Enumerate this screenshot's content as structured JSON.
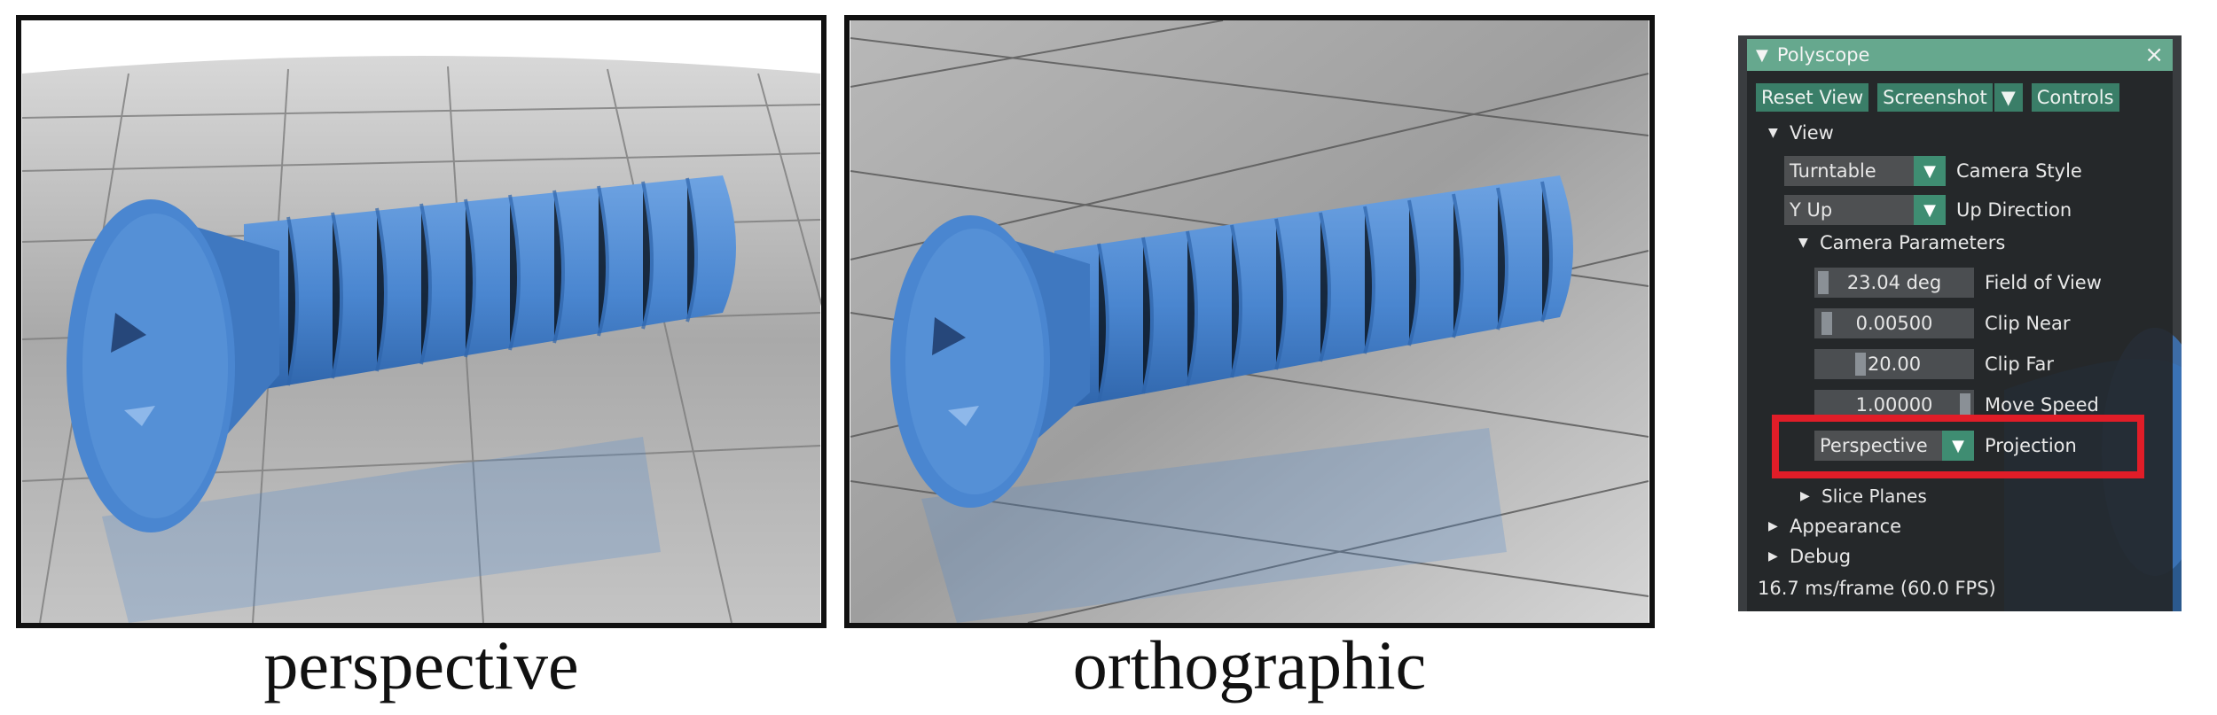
{
  "captions": {
    "left": "perspective",
    "right": "orthographic"
  },
  "panel": {
    "title": "Polyscope",
    "close_icon": "close-icon",
    "buttons": {
      "reset_view": "Reset View",
      "screenshot": "Screenshot",
      "controls": "Controls"
    },
    "tree": {
      "view": "View",
      "camera_parameters": "Camera Parameters",
      "slice_planes": "Slice Planes",
      "appearance": "Appearance",
      "debug": "Debug"
    },
    "camera_style": {
      "value": "Turntable",
      "label": "Camera Style"
    },
    "up_direction": {
      "value": "Y Up",
      "label": "Up Direction"
    },
    "fov": {
      "value": "23.04 deg",
      "label": "Field of View"
    },
    "clip_near": {
      "value": "0.00500",
      "label": "Clip Near"
    },
    "clip_far": {
      "value": "20.00",
      "label": "Clip Far"
    },
    "move_speed": {
      "value": "1.00000",
      "label": "Move Speed"
    },
    "projection": {
      "value": "Perspective",
      "label": "Projection"
    },
    "fps_text": "16.7 ms/frame (60.0 FPS)"
  },
  "colors": {
    "screw": "#4a86d0",
    "header": "#66a88e",
    "button": "#3a7e68",
    "highlight": "#e11d28"
  }
}
